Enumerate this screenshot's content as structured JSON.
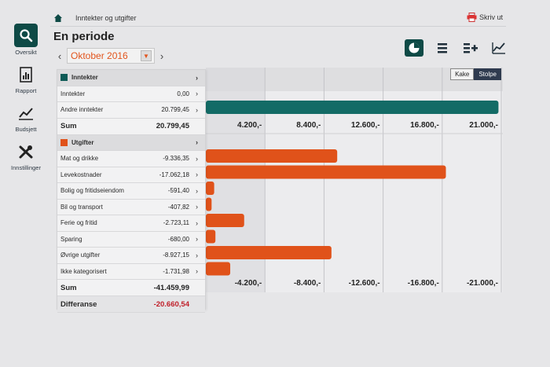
{
  "nav": [
    {
      "label": "Oversikt",
      "icon": "search-icon",
      "active": true
    },
    {
      "label": "Rapport",
      "icon": "report-icon",
      "active": false
    },
    {
      "label": "Budsjett",
      "icon": "trend-icon",
      "active": false
    },
    {
      "label": "Innstillinger",
      "icon": "tools-icon",
      "active": false
    }
  ],
  "breadcrumb": "Inntekter og utgifter",
  "print_label": "Skriv ut",
  "title": "En periode",
  "period": {
    "value": "Oktober 2016",
    "prev": "‹",
    "next": "›"
  },
  "toggle": {
    "kake": "Kake",
    "stolpe": "Stolpe",
    "active": "Stolpe"
  },
  "panel": {
    "income": {
      "header": "Inntekter",
      "color": "#0e5b57",
      "rows": [
        {
          "label": "Inntekter",
          "value": "0,00"
        },
        {
          "label": "Andre inntekter",
          "value": "20.799,45"
        }
      ],
      "sum_label": "Sum",
      "sum_value": "20.799,45"
    },
    "expenses": {
      "header": "Utgifter",
      "color": "#e0521a",
      "rows": [
        {
          "label": "Mat og drikke",
          "value": "-9.336,35"
        },
        {
          "label": "Levekostnader",
          "value": "-17.062,18"
        },
        {
          "label": "Bolig og fritidseiendom",
          "value": "-591,40"
        },
        {
          "label": "Bil og transport",
          "value": "-407,82"
        },
        {
          "label": "Ferie og fritid",
          "value": "-2.723,11"
        },
        {
          "label": "Sparing",
          "value": "-680,00"
        },
        {
          "label": "Øvrige utgifter",
          "value": "-8.927,15"
        },
        {
          "label": "Ikke kategorisert",
          "value": "-1.731,98"
        }
      ],
      "sum_label": "Sum",
      "sum_value": "-41.459,99"
    },
    "diff_label": "Differanse",
    "diff_value": "-20.660,54"
  },
  "chart_data": {
    "type": "bar",
    "orientation": "horizontal",
    "income_ticks": [
      "4.200,-",
      "8.400,-",
      "12.600,-",
      "16.800,-",
      "21.000,-"
    ],
    "expense_ticks": [
      "-4.200,-",
      "-8.400,-",
      "-12.600,-",
      "-16.800,-",
      "-21.000,-"
    ],
    "xlim": [
      0,
      21000
    ],
    "income_values": [
      0,
      20799.45
    ],
    "expense_values": [
      9336.35,
      17062.18,
      591.4,
      407.82,
      2723.11,
      680.0,
      8927.15,
      1731.98
    ],
    "income_color": "#136b66",
    "expense_color": "#e0521a"
  }
}
